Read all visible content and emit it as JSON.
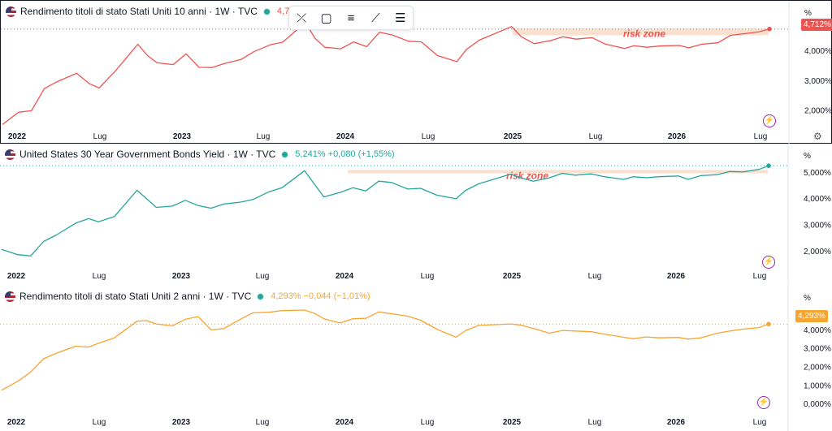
{
  "toolbar": {
    "tools": [
      "cross-lines-icon",
      "rectangle-icon",
      "fib-icon",
      "path-icon",
      "lines-icon"
    ],
    "glyphs": [
      "⤫",
      "▢",
      "≡",
      "⟋",
      "☰"
    ]
  },
  "chart_data": [
    {
      "type": "line",
      "title": "Rendimento titoli di stato Stati Uniti 10 anni · 1W · TVC",
      "value_text": "4,712%",
      "price_badge": "4,712%",
      "unit": "%",
      "color": "#ef5350",
      "x_labels": [
        "2022",
        "Lug",
        "2023",
        "Lug",
        "2024",
        "Lug",
        "2025",
        "Lug",
        "2026",
        "Lug"
      ],
      "bold_x_labels": [
        "2022",
        "2023",
        "2024",
        "2025",
        "2026"
      ],
      "y_ticks": [
        "4,000%",
        "3,000%",
        "2,000%"
      ],
      "ylim": [
        1.45,
        5.0
      ],
      "annotation": "risk zone",
      "risk_zone": [
        4.5,
        4.72
      ],
      "x": [
        "2022-01-03",
        "2022-02-07",
        "2022-03-07",
        "2022-04-04",
        "2022-05-02",
        "2022-06-13",
        "2022-07-11",
        "2022-08-01",
        "2022-09-05",
        "2022-10-24",
        "2022-11-14",
        "2022-12-05",
        "2023-01-09",
        "2023-02-06",
        "2023-03-06",
        "2023-04-03",
        "2023-05-01",
        "2023-06-05",
        "2023-07-03",
        "2023-08-07",
        "2023-09-04",
        "2023-10-23",
        "2023-11-13",
        "2023-12-04",
        "2024-01-08",
        "2024-02-05",
        "2024-03-04",
        "2024-04-01",
        "2024-04-29",
        "2024-06-03",
        "2024-07-01",
        "2024-08-05",
        "2024-09-16",
        "2024-10-07",
        "2024-11-04",
        "2025-01-13",
        "2025-02-03",
        "2025-03-03",
        "2025-04-07",
        "2025-05-05",
        "2025-06-02",
        "2025-07-07",
        "2025-08-04",
        "2025-09-15",
        "2025-10-06",
        "2025-11-03",
        "2025-12-01",
        "2026-01-12",
        "2026-02-02",
        "2026-03-02",
        "2026-04-06",
        "2026-05-04",
        "2026-06-01",
        "2026-07-06",
        "2026-07-27"
      ],
      "y": [
        1.52,
        1.93,
        1.98,
        2.72,
        2.95,
        3.23,
        2.88,
        2.74,
        3.3,
        4.2,
        3.82,
        3.58,
        3.52,
        3.88,
        3.43,
        3.42,
        3.56,
        3.69,
        3.95,
        4.18,
        4.27,
        4.93,
        4.4,
        4.1,
        4.05,
        4.28,
        4.12,
        4.6,
        4.51,
        4.3,
        4.28,
        3.82,
        3.62,
        4.03,
        4.34,
        4.79,
        4.45,
        4.22,
        4.32,
        4.45,
        4.37,
        4.42,
        4.21,
        4.06,
        4.15,
        4.1,
        4.14,
        4.16,
        4.08,
        4.2,
        4.25,
        4.5,
        4.55,
        4.62,
        4.71
      ]
    },
    {
      "type": "line",
      "title": "United States 30 Year Government Bonds Yield · 1W · TVC",
      "value_text": "5,241% +0,080 (+1,55%)",
      "unit": "%",
      "color": "#26a69a",
      "x_labels": [
        "2022",
        "Lug",
        "2023",
        "Lug",
        "2024",
        "Lug",
        "2025",
        "Lug",
        "2026",
        "Lug"
      ],
      "bold_x_labels": [
        "2022",
        "2023",
        "2024",
        "2025",
        "2026"
      ],
      "y_ticks": [
        "5,000%",
        "4,000%",
        "3,000%",
        "2,000%"
      ],
      "ylim": [
        1.5,
        5.4
      ],
      "annotation": "risk zone",
      "risk_zone": [
        4.95,
        5.08
      ],
      "x": [
        "2022-01-03",
        "2022-02-07",
        "2022-03-07",
        "2022-04-04",
        "2022-05-02",
        "2022-06-13",
        "2022-07-11",
        "2022-08-01",
        "2022-09-05",
        "2022-10-24",
        "2022-11-14",
        "2022-12-05",
        "2023-01-09",
        "2023-02-06",
        "2023-03-06",
        "2023-04-03",
        "2023-05-01",
        "2023-06-05",
        "2023-07-03",
        "2023-08-07",
        "2023-09-04",
        "2023-10-23",
        "2023-11-13",
        "2023-12-04",
        "2024-01-08",
        "2024-02-05",
        "2024-03-04",
        "2024-04-01",
        "2024-04-29",
        "2024-06-03",
        "2024-07-01",
        "2024-08-05",
        "2024-09-16",
        "2024-10-07",
        "2024-11-04",
        "2025-01-13",
        "2025-02-03",
        "2025-03-03",
        "2025-04-07",
        "2025-05-05",
        "2025-06-02",
        "2025-07-07",
        "2025-08-04",
        "2025-09-15",
        "2025-10-06",
        "2025-11-03",
        "2025-12-01",
        "2026-01-12",
        "2026-02-02",
        "2026-03-02",
        "2026-04-06",
        "2026-05-04",
        "2026-06-01",
        "2026-07-06",
        "2026-07-27"
      ],
      "y": [
        2.05,
        1.85,
        1.8,
        2.35,
        2.6,
        3.05,
        3.22,
        3.1,
        3.3,
        4.3,
        3.98,
        3.65,
        3.7,
        3.92,
        3.72,
        3.62,
        3.78,
        3.85,
        3.95,
        4.25,
        4.4,
        5.05,
        4.55,
        4.05,
        4.22,
        4.4,
        4.28,
        4.65,
        4.6,
        4.35,
        4.38,
        4.12,
        3.98,
        4.3,
        4.55,
        4.92,
        4.78,
        4.65,
        4.78,
        4.95,
        4.88,
        4.93,
        4.82,
        4.72,
        4.82,
        4.78,
        4.82,
        4.85,
        4.72,
        4.86,
        4.9,
        5.02,
        5.0,
        5.1,
        5.24
      ]
    },
    {
      "type": "line",
      "title": "Rendimento titoli di stato Stati Uniti 2 anni · 1W · TVC",
      "value_text": "4,293% −0,044 (−1,01%)",
      "price_badge": "4,293%",
      "unit": "%",
      "color": "#f7a531",
      "x_labels": [
        "2022",
        "Lug",
        "2023",
        "Lug",
        "2024",
        "Lug",
        "2025",
        "Lug",
        "2026",
        "Lug"
      ],
      "bold_x_labels": [
        "2022",
        "2023",
        "2024",
        "2025",
        "2026"
      ],
      "y_ticks": [
        "4,000%",
        "3,000%",
        "2,000%",
        "1,000%",
        "0,000%"
      ],
      "ylim": [
        -0.3,
        5.4
      ],
      "x": [
        "2022-01-03",
        "2022-02-07",
        "2022-03-07",
        "2022-04-04",
        "2022-05-02",
        "2022-06-13",
        "2022-07-11",
        "2022-08-01",
        "2022-09-05",
        "2022-10-24",
        "2022-11-14",
        "2022-12-05",
        "2023-01-09",
        "2023-02-06",
        "2023-03-06",
        "2023-04-03",
        "2023-05-01",
        "2023-06-05",
        "2023-07-03",
        "2023-08-07",
        "2023-09-04",
        "2023-10-23",
        "2023-11-13",
        "2023-12-04",
        "2024-01-08",
        "2024-02-05",
        "2024-03-04",
        "2024-04-01",
        "2024-04-29",
        "2024-06-03",
        "2024-07-01",
        "2024-08-05",
        "2024-09-16",
        "2024-10-07",
        "2024-11-04",
        "2025-01-13",
        "2025-02-03",
        "2025-03-03",
        "2025-04-07",
        "2025-05-05",
        "2025-06-02",
        "2025-07-07",
        "2025-08-04",
        "2025-09-15",
        "2025-10-06",
        "2025-11-03",
        "2025-12-01",
        "2026-01-12",
        "2026-02-02",
        "2026-03-02",
        "2026-04-06",
        "2026-05-04",
        "2026-06-01",
        "2026-07-06",
        "2026-07-27"
      ],
      "y": [
        0.72,
        1.2,
        1.7,
        2.42,
        2.72,
        3.1,
        3.05,
        3.25,
        3.55,
        4.45,
        4.48,
        4.3,
        4.2,
        4.55,
        4.7,
        3.98,
        4.05,
        4.55,
        4.9,
        4.93,
        5.02,
        5.05,
        4.88,
        4.58,
        4.35,
        4.58,
        4.6,
        4.95,
        4.85,
        4.72,
        4.5,
        4.02,
        3.58,
        3.95,
        4.22,
        4.3,
        4.24,
        4.05,
        3.8,
        3.95,
        3.92,
        3.88,
        3.75,
        3.58,
        3.5,
        3.6,
        3.55,
        3.57,
        3.48,
        3.55,
        3.8,
        3.92,
        4.02,
        4.1,
        4.29
      ]
    }
  ]
}
